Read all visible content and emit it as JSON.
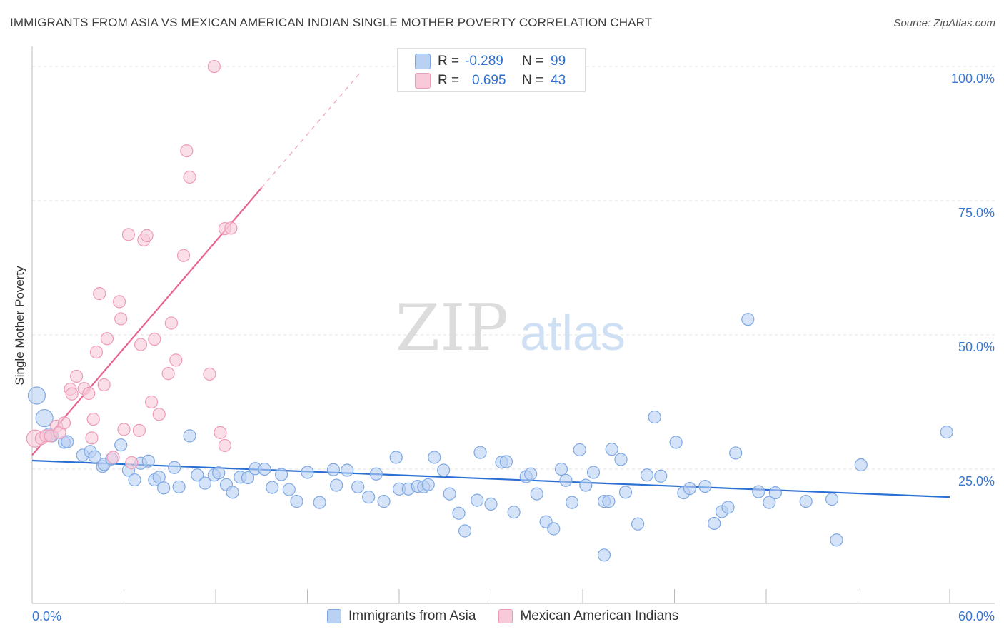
{
  "title": "IMMIGRANTS FROM ASIA VS MEXICAN AMERICAN INDIAN SINGLE MOTHER POVERTY CORRELATION CHART",
  "source": "Source: ZipAtlas.com",
  "watermark": {
    "zip": "ZIP",
    "atlas": "atlas"
  },
  "colors": {
    "blue": "#7fa8e3",
    "blue_fill": "#b9d1f3",
    "blue_line": "#2a6fd4",
    "pink": "#ee9bb6",
    "pink_fill": "#f8c9d8",
    "pink_line": "#e8638f",
    "axis_text": "#3a78d2",
    "grid": "#e2e2e2"
  },
  "stats_legend": [
    {
      "r_label": "R =",
      "r_value": "-0.289",
      "n_label": "N =",
      "n_value": "99",
      "series": "Immigrants from Asia"
    },
    {
      "r_label": "R =",
      "r_value": "0.695",
      "n_label": "N =",
      "n_value": "43",
      "series": "Mexican American Indians"
    }
  ],
  "chart_data": {
    "type": "scatter",
    "title": "IMMIGRANTS FROM ASIA VS MEXICAN AMERICAN INDIAN SINGLE MOTHER POVERTY CORRELATION CHART",
    "xlabel": "",
    "ylabel": "Single Mother Poverty",
    "xlim": [
      0,
      60
    ],
    "ylim": [
      0,
      102
    ],
    "x_tick_labels": [
      "0.0%",
      "60.0%"
    ],
    "y_ticks": [
      25,
      50,
      75,
      100
    ],
    "y_tick_labels": [
      "25.0%",
      "50.0%",
      "75.0%",
      "100.0%"
    ],
    "grid": true,
    "legend": [
      "Immigrants from Asia",
      "Mexican American Indians"
    ],
    "series": [
      {
        "name": "Immigrants from Asia",
        "color": "blue",
        "points": [
          [
            0.3,
            38.7,
            "L"
          ],
          [
            0.8,
            34.5,
            "L"
          ],
          [
            1.1,
            31.5,
            "M"
          ],
          [
            1.3,
            31.2,
            "M"
          ],
          [
            2.1,
            30.0,
            "M"
          ],
          [
            2.3,
            30.1,
            "M"
          ],
          [
            3.3,
            27.6,
            "M"
          ],
          [
            3.8,
            28.3,
            "M"
          ],
          [
            4.1,
            27.3,
            "M"
          ],
          [
            4.6,
            25.5,
            "M"
          ],
          [
            4.7,
            25.9,
            "M"
          ],
          [
            5.2,
            26.9,
            "M"
          ],
          [
            5.8,
            29.5,
            "M"
          ],
          [
            6.3,
            24.8,
            "M"
          ],
          [
            6.7,
            23.0,
            "M"
          ],
          [
            7.1,
            26.1,
            "M"
          ],
          [
            7.6,
            26.5,
            "M"
          ],
          [
            8.0,
            23.0,
            "M"
          ],
          [
            8.3,
            23.5,
            "M"
          ],
          [
            8.6,
            21.5,
            "M"
          ],
          [
            9.3,
            25.3,
            "M"
          ],
          [
            9.6,
            21.7,
            "M"
          ],
          [
            10.3,
            31.2,
            "M"
          ],
          [
            10.8,
            23.9,
            "M"
          ],
          [
            11.3,
            22.4,
            "M"
          ],
          [
            11.9,
            23.9,
            "M"
          ],
          [
            12.2,
            24.3,
            "M"
          ],
          [
            12.7,
            22.1,
            "M"
          ],
          [
            13.1,
            20.7,
            "M"
          ],
          [
            13.6,
            23.5,
            "M"
          ],
          [
            14.1,
            23.4,
            "M"
          ],
          [
            14.6,
            25.1,
            "M"
          ],
          [
            15.2,
            25.0,
            "M"
          ],
          [
            15.7,
            21.6,
            "M"
          ],
          [
            16.3,
            24.0,
            "M"
          ],
          [
            16.8,
            21.2,
            "M"
          ],
          [
            17.3,
            19.0,
            "M"
          ],
          [
            18.0,
            24.4,
            "M"
          ],
          [
            18.8,
            18.8,
            "M"
          ],
          [
            19.7,
            24.9,
            "M"
          ],
          [
            19.9,
            22.0,
            "M"
          ],
          [
            20.6,
            24.8,
            "M"
          ],
          [
            21.3,
            21.7,
            "M"
          ],
          [
            22.0,
            19.8,
            "M"
          ],
          [
            22.5,
            24.1,
            "M"
          ],
          [
            23.0,
            19.0,
            "M"
          ],
          [
            23.8,
            27.2,
            "M"
          ],
          [
            24.0,
            21.3,
            "M"
          ],
          [
            24.6,
            21.3,
            "M"
          ],
          [
            25.2,
            21.8,
            "M"
          ],
          [
            25.6,
            21.7,
            "M"
          ],
          [
            25.9,
            22.1,
            "M"
          ],
          [
            26.3,
            27.2,
            "M"
          ],
          [
            26.9,
            24.8,
            "M"
          ],
          [
            27.3,
            20.4,
            "M"
          ],
          [
            27.9,
            16.8,
            "M"
          ],
          [
            28.3,
            13.5,
            "M"
          ],
          [
            29.1,
            19.2,
            "M"
          ],
          [
            29.3,
            28.1,
            "M"
          ],
          [
            30.0,
            18.5,
            "M"
          ],
          [
            30.7,
            26.3,
            "M"
          ],
          [
            31.0,
            26.4,
            "M"
          ],
          [
            31.5,
            17.0,
            "M"
          ],
          [
            32.3,
            23.6,
            "M"
          ],
          [
            32.6,
            24.1,
            "M"
          ],
          [
            33.0,
            20.4,
            "M"
          ],
          [
            33.6,
            15.2,
            "M"
          ],
          [
            34.1,
            13.9,
            "M"
          ],
          [
            34.6,
            25.0,
            "M"
          ],
          [
            34.9,
            22.9,
            "M"
          ],
          [
            35.3,
            18.8,
            "M"
          ],
          [
            35.8,
            28.6,
            "M"
          ],
          [
            36.2,
            22.0,
            "M"
          ],
          [
            36.7,
            24.4,
            "M"
          ],
          [
            37.4,
            19.0,
            "M"
          ],
          [
            37.7,
            19.0,
            "M"
          ],
          [
            37.4,
            9.0,
            "M"
          ],
          [
            37.9,
            28.7,
            "M"
          ],
          [
            38.5,
            26.8,
            "M"
          ],
          [
            38.8,
            20.7,
            "M"
          ],
          [
            39.6,
            14.8,
            "M"
          ],
          [
            40.2,
            23.9,
            "M"
          ],
          [
            40.7,
            34.7,
            "M"
          ],
          [
            41.1,
            23.7,
            "M"
          ],
          [
            42.1,
            30.0,
            "M"
          ],
          [
            42.6,
            20.6,
            "M"
          ],
          [
            43.0,
            21.4,
            "M"
          ],
          [
            44.0,
            21.8,
            "M"
          ],
          [
            44.6,
            14.9,
            "M"
          ],
          [
            45.1,
            17.1,
            "M"
          ],
          [
            45.5,
            17.9,
            "M"
          ],
          [
            46.0,
            28.0,
            "M"
          ],
          [
            46.8,
            52.9,
            "M"
          ],
          [
            47.5,
            20.8,
            "M"
          ],
          [
            48.2,
            18.8,
            "M"
          ],
          [
            48.6,
            20.6,
            "M"
          ],
          [
            50.6,
            19.0,
            "M"
          ],
          [
            52.3,
            19.4,
            "M"
          ],
          [
            52.6,
            11.8,
            "M"
          ],
          [
            54.2,
            25.8,
            "M"
          ],
          [
            59.8,
            31.9,
            "M"
          ]
        ],
        "trend": {
          "x0": 0.0,
          "y0": 26.6,
          "x1": 60.0,
          "y1": 19.8
        }
      },
      {
        "name": "Mexican American Indians",
        "color": "pink",
        "points": [
          [
            0.2,
            30.7,
            "L"
          ],
          [
            0.6,
            30.7,
            "M"
          ],
          [
            0.9,
            31.2,
            "M"
          ],
          [
            1.2,
            31.2,
            "M"
          ],
          [
            1.6,
            33.0,
            "M"
          ],
          [
            1.8,
            31.8,
            "M"
          ],
          [
            2.1,
            33.6,
            "M"
          ],
          [
            2.5,
            39.9,
            "M"
          ],
          [
            2.6,
            39.0,
            "M"
          ],
          [
            2.9,
            42.3,
            "M"
          ],
          [
            3.4,
            40.0,
            "M"
          ],
          [
            3.7,
            39.1,
            "M"
          ],
          [
            3.9,
            30.8,
            "M"
          ],
          [
            4.0,
            34.3,
            "M"
          ],
          [
            4.2,
            46.8,
            "M"
          ],
          [
            4.4,
            57.7,
            "M"
          ],
          [
            4.7,
            40.7,
            "M"
          ],
          [
            4.9,
            49.3,
            "M"
          ],
          [
            5.3,
            27.2,
            "M"
          ],
          [
            5.7,
            56.2,
            "M"
          ],
          [
            5.8,
            53.0,
            "M"
          ],
          [
            6.0,
            32.4,
            "M"
          ],
          [
            6.3,
            68.7,
            "M"
          ],
          [
            6.5,
            26.2,
            "M"
          ],
          [
            7.0,
            32.2,
            "M"
          ],
          [
            7.1,
            48.2,
            "M"
          ],
          [
            7.3,
            67.7,
            "M"
          ],
          [
            7.5,
            68.5,
            "M"
          ],
          [
            7.8,
            37.5,
            "M"
          ],
          [
            8.0,
            49.2,
            "M"
          ],
          [
            8.3,
            35.2,
            "M"
          ],
          [
            8.9,
            42.8,
            "M"
          ],
          [
            9.1,
            52.2,
            "M"
          ],
          [
            9.4,
            45.3,
            "M"
          ],
          [
            9.9,
            64.8,
            "M"
          ],
          [
            10.1,
            84.3,
            "M"
          ],
          [
            10.3,
            79.4,
            "M"
          ],
          [
            11.6,
            42.7,
            "M"
          ],
          [
            12.6,
            69.8,
            "M"
          ],
          [
            13.0,
            69.9,
            "M"
          ],
          [
            11.9,
            100.0,
            "M"
          ],
          [
            12.3,
            31.8,
            "M"
          ],
          [
            12.6,
            29.4,
            "M"
          ]
        ],
        "trend": {
          "x0": 0.0,
          "y0": 27.6,
          "x1": 15.0,
          "y1": 77.4
        },
        "trend_extension": {
          "x0": 15.0,
          "y0": 77.4,
          "x1": 21.5,
          "y1": 99.0
        }
      }
    ]
  }
}
